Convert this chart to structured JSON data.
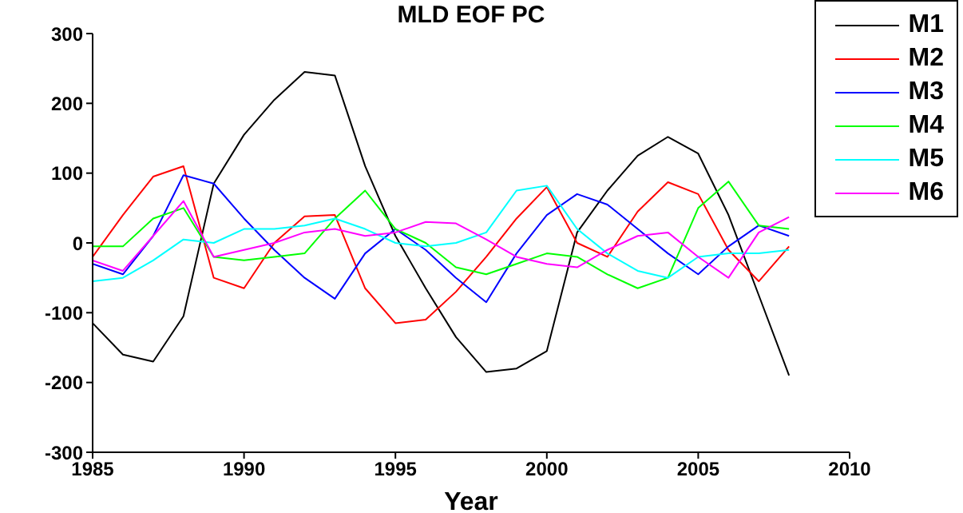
{
  "chart_data": {
    "type": "line",
    "title": "MLD EOF PC",
    "xlabel": "Year",
    "x": [
      1985,
      1986,
      1987,
      1988,
      1989,
      1990,
      1991,
      1992,
      1993,
      1994,
      1995,
      1996,
      1997,
      1998,
      1999,
      2000,
      2001,
      2002,
      2003,
      2004,
      2005,
      2006,
      2007,
      2008
    ],
    "series": [
      {
        "name": "M1",
        "color": "#000000",
        "values": [
          -115,
          -160,
          -170,
          -105,
          85,
          155,
          205,
          245,
          240,
          110,
          10,
          -65,
          -135,
          -185,
          -180,
          -155,
          15,
          75,
          125,
          152,
          128,
          40,
          -75,
          -190
        ]
      },
      {
        "name": "M2",
        "color": "#ff0000",
        "values": [
          -20,
          40,
          95,
          110,
          -50,
          -65,
          0,
          38,
          40,
          -65,
          -115,
          -110,
          -70,
          -20,
          35,
          80,
          0,
          -20,
          45,
          87,
          70,
          -10,
          -55,
          -5
        ]
      },
      {
        "name": "M3",
        "color": "#0000ff",
        "values": [
          -30,
          -45,
          10,
          97,
          85,
          35,
          -10,
          -50,
          -80,
          -15,
          20,
          -10,
          -50,
          -85,
          -15,
          40,
          70,
          55,
          20,
          -15,
          -45,
          -5,
          25,
          10
        ]
      },
      {
        "name": "M4",
        "color": "#00ff00",
        "values": [
          -5,
          -5,
          35,
          50,
          -20,
          -25,
          -20,
          -15,
          35,
          75,
          20,
          0,
          -35,
          -45,
          -30,
          -15,
          -20,
          -45,
          -65,
          -50,
          50,
          88,
          25,
          20
        ]
      },
      {
        "name": "M5",
        "color": "#00ffff",
        "values": [
          -55,
          -50,
          -25,
          5,
          0,
          20,
          20,
          25,
          35,
          20,
          0,
          -5,
          0,
          15,
          75,
          82,
          20,
          -15,
          -40,
          -50,
          -20,
          -15,
          -15,
          -10
        ]
      },
      {
        "name": "M6",
        "color": "#ff00ff",
        "values": [
          -25,
          -40,
          10,
          60,
          -20,
          -10,
          0,
          15,
          20,
          10,
          15,
          30,
          28,
          5,
          -20,
          -30,
          -35,
          -10,
          10,
          15,
          -20,
          -50,
          15,
          37
        ]
      }
    ],
    "xlim": [
      1985,
      2010
    ],
    "xticks": [
      1985,
      1990,
      1995,
      2000,
      2005,
      2010
    ],
    "ylim": [
      -300,
      300
    ],
    "yticks": [
      -300,
      -200,
      -100,
      0,
      100,
      200,
      300
    ],
    "grid": false,
    "legend": "top right",
    "marker": "none",
    "line_style": "solid"
  }
}
